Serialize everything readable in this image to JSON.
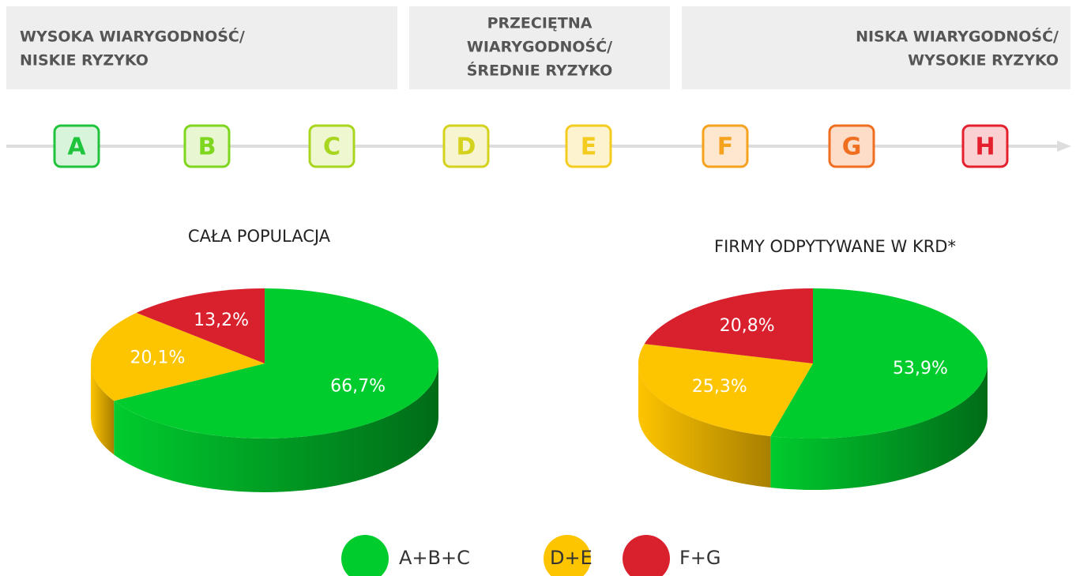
{
  "headers": [
    [
      "WYSOKA WIARYGODNOŚĆ/",
      "NISKIE RYZYKO"
    ],
    [
      "PRZECIĘTNA",
      "WIARYGODNOŚĆ/",
      "ŚREDNIE RYZYKO"
    ],
    [
      "NISKA WIARYGODNOŚĆ/",
      "WYSOKIE RYZYKO"
    ]
  ],
  "grades": [
    "A",
    "B",
    "C",
    "D",
    "E",
    "F",
    "G",
    "H"
  ],
  "chart_data": [
    {
      "type": "pie",
      "title": "CAŁA POPULACJA",
      "categories": [
        "A+B+C",
        "D+E",
        "F+G"
      ],
      "colors": [
        "#00cc2e",
        "#fdc400",
        "#d9212e"
      ],
      "values": [
        66.7,
        20.1,
        13.2
      ],
      "value_labels": [
        "66,7%",
        "20,1%",
        "13,2%"
      ]
    },
    {
      "type": "pie",
      "title": "FIRMY ODPYTYWANE W KRD*",
      "categories": [
        "A+B+C",
        "D+E",
        "F+G"
      ],
      "colors": [
        "#00cc2e",
        "#fdc400",
        "#d9212e"
      ],
      "values": [
        53.9,
        25.3,
        20.8
      ],
      "value_labels": [
        "53,9%",
        "25,3%",
        "20,8%"
      ]
    }
  ]
}
